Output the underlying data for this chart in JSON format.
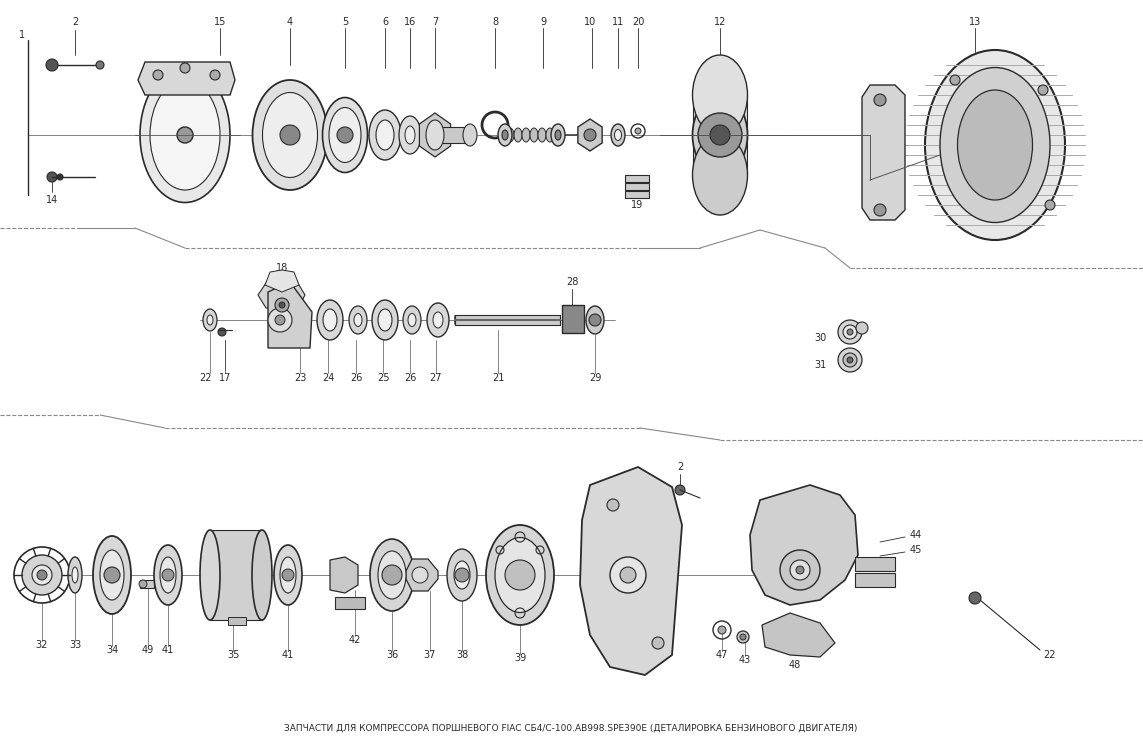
{
  "bg_color": "#ffffff",
  "line_color": "#2a2a2a",
  "fig_width": 11.43,
  "fig_height": 7.43,
  "dpi": 100,
  "title": "ЗАПЧАСТИ ДЛЯ КОМПРЕССОРА ПОРШНЕВОГО FIAC СБ4/С-100.AB998.SPE390Е (ДЕТАЛИРОВКА БЕНЗИНОВОГО ДВИГАТЕЛЯ)"
}
